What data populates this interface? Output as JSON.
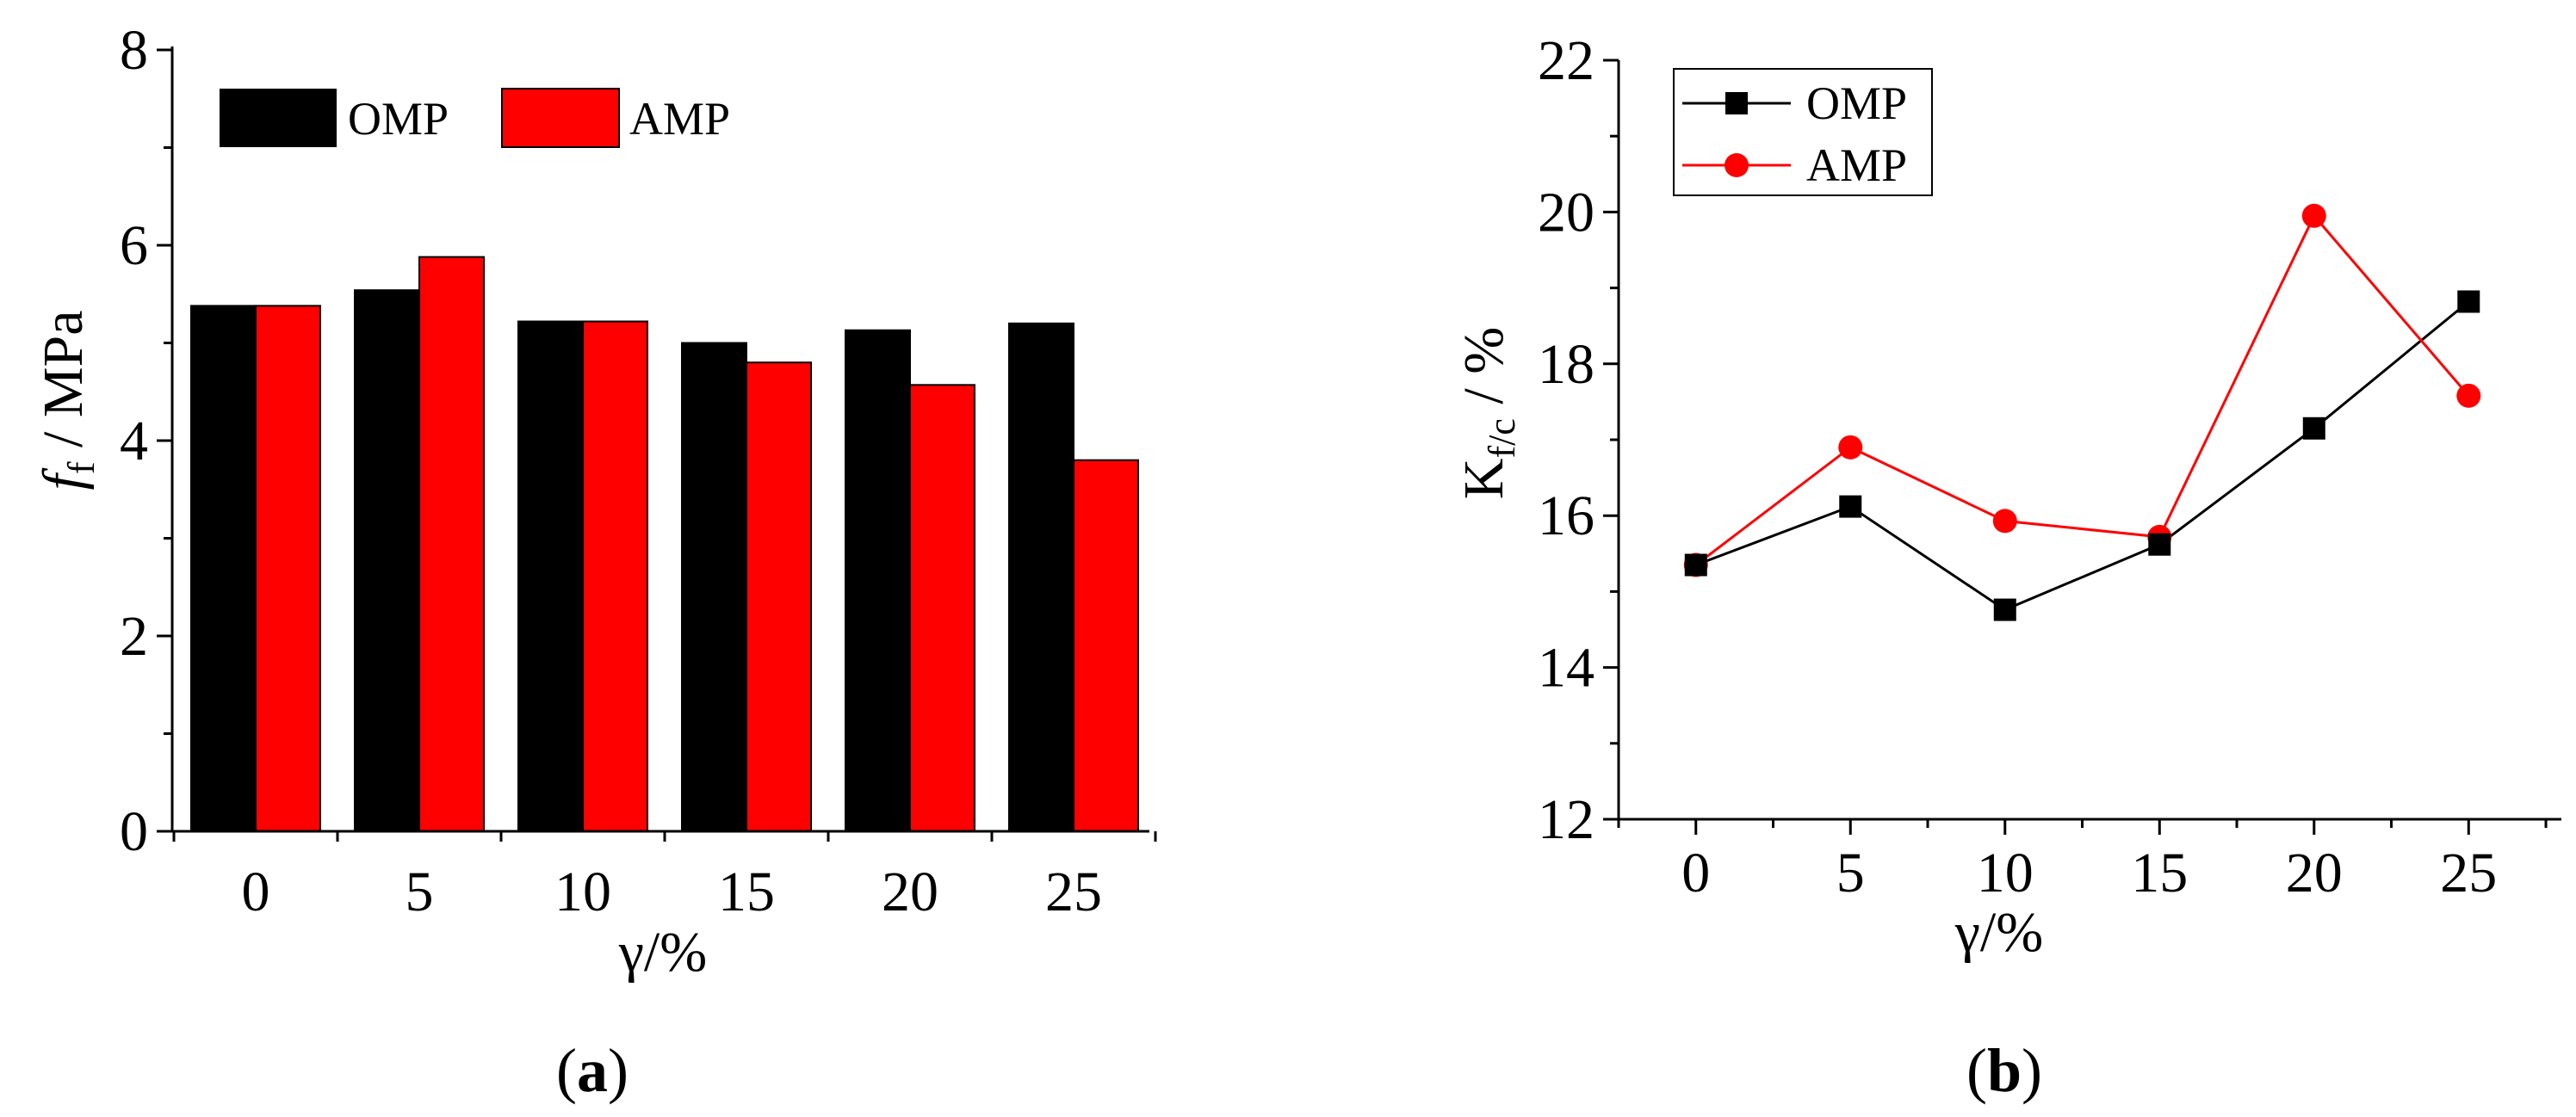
{
  "colors": {
    "omp": "#000000",
    "amp": "#ff0000",
    "axis": "#000000"
  },
  "chart_data": [
    {
      "type": "bar",
      "panel_label": "a",
      "categories": [
        "0",
        "5",
        "10",
        "15",
        "20",
        "25"
      ],
      "series": [
        {
          "name": "OMP",
          "values": [
            5.38,
            5.54,
            5.22,
            5.0,
            5.13,
            5.2
          ]
        },
        {
          "name": "AMP",
          "values": [
            5.38,
            5.88,
            5.22,
            4.8,
            4.57,
            3.8
          ]
        }
      ],
      "xlabel": "γ/%",
      "ylabel_main": "f",
      "ylabel_sub": "f",
      "ylabel_rest": " / MPa",
      "ylim": [
        0,
        8
      ],
      "yticks": [
        "0",
        "2",
        "4",
        "6",
        "8"
      ],
      "grid": false,
      "legend_position": "top-left"
    },
    {
      "type": "line",
      "panel_label": "b",
      "x": [
        0,
        5,
        10,
        15,
        20,
        25
      ],
      "xticks": [
        "0",
        "5",
        "10",
        "15",
        "20",
        "25"
      ],
      "series": [
        {
          "name": "OMP",
          "marker": "square",
          "values": [
            15.35,
            16.12,
            14.76,
            15.62,
            17.15,
            18.82
          ]
        },
        {
          "name": "AMP",
          "marker": "circle",
          "values": [
            15.35,
            16.9,
            15.93,
            15.72,
            19.95,
            17.58
          ]
        }
      ],
      "xlabel": "γ/%",
      "ylabel_main": "K",
      "ylabel_sub": "f/c",
      "ylabel_rest": " / %",
      "ylim": [
        12,
        22
      ],
      "yticks": [
        "12",
        "14",
        "16",
        "18",
        "20",
        "22"
      ],
      "xlim": [
        -2.5,
        28
      ],
      "grid": false,
      "legend_position": "top-left"
    }
  ]
}
